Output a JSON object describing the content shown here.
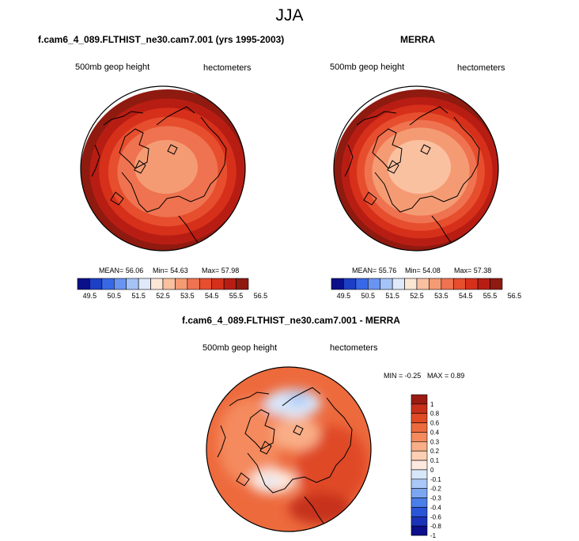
{
  "figure": {
    "season": "JJA"
  },
  "colors": {
    "h_levels": [
      "#0b0f8a",
      "#1d3fc6",
      "#3868e6",
      "#6a94f2",
      "#a6c3f7",
      "#dfe9f9",
      "#fbe6d6",
      "#f9c1a0",
      "#f59b74",
      "#ef7350",
      "#e64e2e",
      "#d6301b",
      "#b81d13",
      "#8f1a10"
    ],
    "d_levels": [
      "#0b0f8a",
      "#1b33b8",
      "#2a55d8",
      "#4a7ee8",
      "#7aa6f2",
      "#a9c8f7",
      "#d8e6f9",
      "#fde9de",
      "#fccfb5",
      "#f9ae87",
      "#f48a5d",
      "#ed6a3d",
      "#e04a25",
      "#c6301a",
      "#9a1b12"
    ]
  },
  "chart_data": [
    {
      "type": "heatmap",
      "panel": "model",
      "title": "f.cam6_4_089.FLTHIST_ne30.cam7.001 (yrs 1995-2003)",
      "left_label": "500mb geop height",
      "right_label": "hectometers",
      "stats": {
        "mean": "MEAN=  56.06",
        "min": "Min=  54.63",
        "max": "Max=  57.98"
      },
      "colorbar": {
        "ticks": [
          "49.5",
          "50.5",
          "51.5",
          "52.5",
          "53.5",
          "54.5",
          "55.5",
          "56.5"
        ],
        "bins": 14,
        "orientation": "horizontal"
      },
      "field": {
        "center_level": 8,
        "ring_levels": [
          9,
          10,
          11,
          12,
          13
        ]
      }
    },
    {
      "type": "heatmap",
      "panel": "obs",
      "title": "MERRA",
      "left_label": "500mb geop height",
      "right_label": "hectometers",
      "stats": {
        "mean": "MEAN=  55.76",
        "min": "Min=  54.08",
        "max": "Max=  57.38"
      },
      "colorbar": {
        "ticks": [
          "49.5",
          "50.5",
          "51.5",
          "52.5",
          "53.5",
          "54.5",
          "55.5",
          "56.5"
        ],
        "bins": 14,
        "orientation": "horizontal"
      },
      "field": {
        "center_level": 7,
        "ring_levels": [
          8,
          9,
          10,
          11,
          12,
          13
        ]
      }
    },
    {
      "type": "heatmap",
      "panel": "difference",
      "title": "f.cam6_4_089.FLTHIST_ne30.cam7.001 - MERRA",
      "left_label": "500mb geop height",
      "right_label": "hectometers",
      "stats": {
        "min": "MIN = -0.25",
        "max": "MAX =  0.89"
      },
      "colorbar": {
        "ticks": [
          "1",
          "0.8",
          "0.6",
          "0.4",
          "0.3",
          "0.2",
          "0.1",
          "0",
          "-0.1",
          "-0.2",
          "-0.3",
          "-0.4",
          "-0.6",
          "-0.8",
          "-1"
        ],
        "orientation": "vertical"
      },
      "field": {
        "min": -0.25,
        "max": 0.89
      }
    }
  ]
}
